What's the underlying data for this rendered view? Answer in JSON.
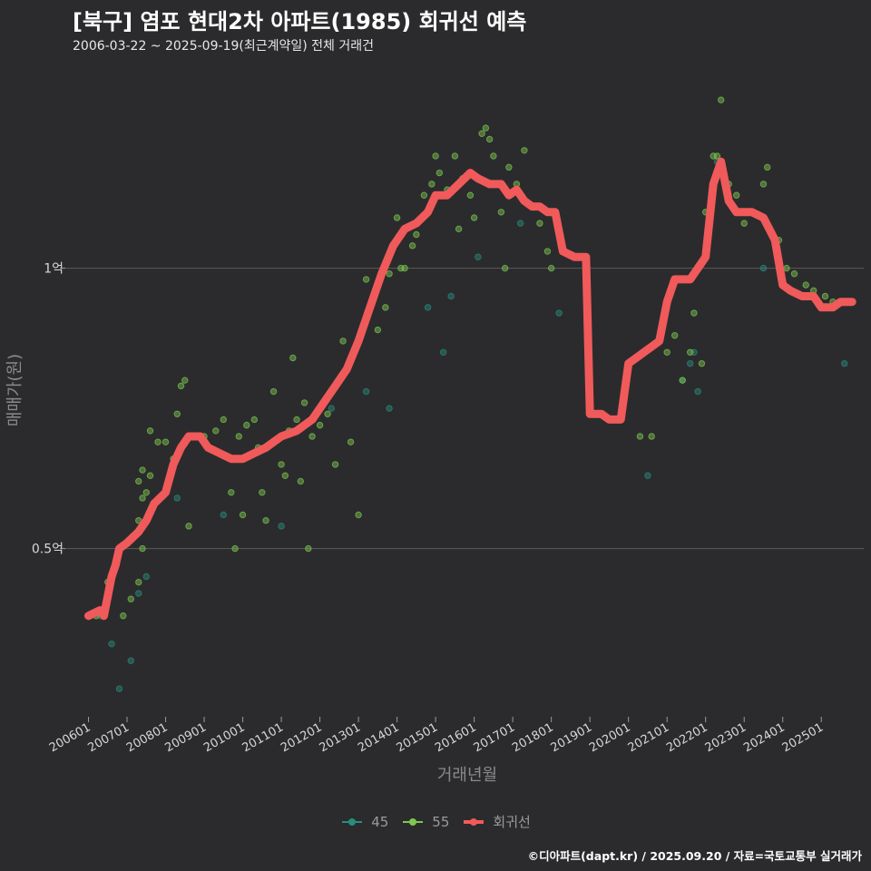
{
  "title": "[북구] 염포 현대2차 아파트(1985) 회귀선 예측",
  "subtitle": "2006-03-22 ~ 2025-09-19(최근계약일) 전체 거래건",
  "caption": "©디아파트(dapt.kr) / 2025.09.20 / 자료=국토교통부 실거래가",
  "colors": {
    "background": "#2b2b2d",
    "grid": "#5a5a5a",
    "s45": "#2a8c7c",
    "s55": "#7ec850",
    "trend": "#f05a5a"
  },
  "legend": [
    {
      "label": "45",
      "color": "#2a8c7c"
    },
    {
      "label": "55",
      "color": "#7ec850"
    },
    {
      "label": "회귀선",
      "color": "#f05a5a"
    }
  ],
  "chart_data": {
    "type": "scatter",
    "xlabel": "거래년월",
    "ylabel": "매매가(원)",
    "x_unit": "year (decimal)",
    "y_unit": "억",
    "xlim": [
      2005.4,
      2026.1
    ],
    "ylim": [
      0.2,
      1.365
    ],
    "xticks": [
      {
        "x": 2006.0,
        "label": "200601"
      },
      {
        "x": 2007.0,
        "label": "200701"
      },
      {
        "x": 2008.0,
        "label": "200801"
      },
      {
        "x": 2009.0,
        "label": "200901"
      },
      {
        "x": 2010.0,
        "label": "201001"
      },
      {
        "x": 2011.0,
        "label": "201101"
      },
      {
        "x": 2012.0,
        "label": "201201"
      },
      {
        "x": 2013.0,
        "label": "201301"
      },
      {
        "x": 2014.0,
        "label": "201401"
      },
      {
        "x": 2015.0,
        "label": "201501"
      },
      {
        "x": 2016.0,
        "label": "201601"
      },
      {
        "x": 2017.0,
        "label": "201701"
      },
      {
        "x": 2018.0,
        "label": "201801"
      },
      {
        "x": 2019.0,
        "label": "201901"
      },
      {
        "x": 2020.0,
        "label": "202001"
      },
      {
        "x": 2021.0,
        "label": "202101"
      },
      {
        "x": 2022.0,
        "label": "202201"
      },
      {
        "x": 2023.0,
        "label": "202301"
      },
      {
        "x": 2024.0,
        "label": "202401"
      },
      {
        "x": 2025.0,
        "label": "202501"
      }
    ],
    "yticks": [
      {
        "y": 0.5,
        "label": "0.5억"
      },
      {
        "y": 1.0,
        "label": "1억"
      }
    ],
    "series": [
      {
        "name": "45",
        "points": [
          [
            2006.3,
            0.38
          ],
          [
            2006.6,
            0.33
          ],
          [
            2006.8,
            0.25
          ],
          [
            2007.1,
            0.3
          ],
          [
            2007.3,
            0.42
          ],
          [
            2007.5,
            0.45
          ],
          [
            2008.3,
            0.59
          ],
          [
            2009.5,
            0.56
          ],
          [
            2011.0,
            0.54
          ],
          [
            2012.3,
            0.75
          ],
          [
            2013.2,
            0.78
          ],
          [
            2013.8,
            0.75
          ],
          [
            2014.8,
            0.93
          ],
          [
            2015.2,
            0.85
          ],
          [
            2015.4,
            0.95
          ],
          [
            2016.1,
            1.02
          ],
          [
            2017.2,
            1.08
          ],
          [
            2018.2,
            0.92
          ],
          [
            2020.5,
            0.63
          ],
          [
            2021.4,
            0.8
          ],
          [
            2021.6,
            0.83
          ],
          [
            2021.7,
            0.85
          ],
          [
            2021.8,
            0.78
          ],
          [
            2022.3,
            1.19
          ],
          [
            2023.5,
            1.0
          ],
          [
            2025.6,
            0.83
          ]
        ]
      },
      {
        "name": "55",
        "points": [
          [
            2006.2,
            0.38
          ],
          [
            2006.5,
            0.44
          ],
          [
            2006.9,
            0.38
          ],
          [
            2007.1,
            0.41
          ],
          [
            2007.3,
            0.44
          ],
          [
            2007.4,
            0.5
          ],
          [
            2007.3,
            0.55
          ],
          [
            2007.4,
            0.59
          ],
          [
            2007.3,
            0.62
          ],
          [
            2007.4,
            0.64
          ],
          [
            2007.5,
            0.6
          ],
          [
            2007.6,
            0.63
          ],
          [
            2007.6,
            0.71
          ],
          [
            2007.8,
            0.69
          ],
          [
            2008.0,
            0.69
          ],
          [
            2008.2,
            0.66
          ],
          [
            2008.3,
            0.74
          ],
          [
            2008.4,
            0.79
          ],
          [
            2008.5,
            0.8
          ],
          [
            2008.6,
            0.54
          ],
          [
            2008.8,
            0.7
          ],
          [
            2009.0,
            0.7
          ],
          [
            2009.3,
            0.71
          ],
          [
            2009.5,
            0.73
          ],
          [
            2009.7,
            0.6
          ],
          [
            2009.8,
            0.5
          ],
          [
            2009.9,
            0.7
          ],
          [
            2010.0,
            0.56
          ],
          [
            2010.1,
            0.72
          ],
          [
            2010.3,
            0.73
          ],
          [
            2010.4,
            0.68
          ],
          [
            2010.5,
            0.6
          ],
          [
            2010.6,
            0.55
          ],
          [
            2010.8,
            0.78
          ],
          [
            2011.0,
            0.65
          ],
          [
            2011.1,
            0.63
          ],
          [
            2011.2,
            0.71
          ],
          [
            2011.3,
            0.84
          ],
          [
            2011.4,
            0.73
          ],
          [
            2011.5,
            0.62
          ],
          [
            2011.6,
            0.76
          ],
          [
            2011.7,
            0.5
          ],
          [
            2011.8,
            0.7
          ],
          [
            2012.0,
            0.72
          ],
          [
            2012.2,
            0.74
          ],
          [
            2012.4,
            0.65
          ],
          [
            2012.6,
            0.87
          ],
          [
            2012.8,
            0.69
          ],
          [
            2013.0,
            0.56
          ],
          [
            2013.2,
            0.98
          ],
          [
            2013.4,
            0.95
          ],
          [
            2013.5,
            0.89
          ],
          [
            2013.7,
            0.93
          ],
          [
            2013.8,
            0.99
          ],
          [
            2014.0,
            1.09
          ],
          [
            2014.1,
            1.0
          ],
          [
            2014.2,
            1.0
          ],
          [
            2014.4,
            1.04
          ],
          [
            2014.5,
            1.06
          ],
          [
            2014.7,
            1.13
          ],
          [
            2014.9,
            1.15
          ],
          [
            2015.0,
            1.2
          ],
          [
            2015.1,
            1.17
          ],
          [
            2015.3,
            1.14
          ],
          [
            2015.5,
            1.2
          ],
          [
            2015.6,
            1.07
          ],
          [
            2015.7,
            1.16
          ],
          [
            2015.9,
            1.13
          ],
          [
            2016.0,
            1.09
          ],
          [
            2016.2,
            1.24
          ],
          [
            2016.3,
            1.25
          ],
          [
            2016.4,
            1.23
          ],
          [
            2016.5,
            1.2
          ],
          [
            2016.7,
            1.1
          ],
          [
            2016.8,
            1.0
          ],
          [
            2016.9,
            1.18
          ],
          [
            2017.1,
            1.15
          ],
          [
            2017.3,
            1.21
          ],
          [
            2017.5,
            1.11
          ],
          [
            2017.7,
            1.08
          ],
          [
            2017.9,
            1.03
          ],
          [
            2018.0,
            1.0
          ],
          [
            2020.3,
            0.7
          ],
          [
            2020.6,
            0.7
          ],
          [
            2021.0,
            0.85
          ],
          [
            2021.2,
            0.88
          ],
          [
            2021.4,
            0.8
          ],
          [
            2021.6,
            0.85
          ],
          [
            2021.7,
            0.92
          ],
          [
            2021.9,
            0.83
          ],
          [
            2022.0,
            1.1
          ],
          [
            2022.2,
            1.2
          ],
          [
            2022.3,
            1.2
          ],
          [
            2022.4,
            1.3
          ],
          [
            2022.6,
            1.15
          ],
          [
            2022.8,
            1.13
          ],
          [
            2023.0,
            1.08
          ],
          [
            2023.2,
            1.1
          ],
          [
            2023.5,
            1.15
          ],
          [
            2023.6,
            1.18
          ],
          [
            2023.9,
            1.05
          ],
          [
            2024.1,
            1.0
          ],
          [
            2024.3,
            0.99
          ],
          [
            2024.6,
            0.97
          ],
          [
            2024.8,
            0.96
          ],
          [
            2025.1,
            0.95
          ],
          [
            2025.3,
            0.94
          ]
        ]
      }
    ],
    "trend": {
      "name": "회귀선",
      "points": [
        [
          2006.0,
          0.38
        ],
        [
          2006.3,
          0.39
        ],
        [
          2006.4,
          0.38
        ],
        [
          2006.6,
          0.45
        ],
        [
          2006.7,
          0.47
        ],
        [
          2006.8,
          0.5
        ],
        [
          2007.0,
          0.51
        ],
        [
          2007.3,
          0.53
        ],
        [
          2007.5,
          0.55
        ],
        [
          2007.7,
          0.58
        ],
        [
          2008.0,
          0.6
        ],
        [
          2008.2,
          0.65
        ],
        [
          2008.4,
          0.68
        ],
        [
          2008.6,
          0.7
        ],
        [
          2008.9,
          0.7
        ],
        [
          2009.1,
          0.68
        ],
        [
          2009.4,
          0.67
        ],
        [
          2009.7,
          0.66
        ],
        [
          2010.0,
          0.66
        ],
        [
          2010.3,
          0.67
        ],
        [
          2010.6,
          0.68
        ],
        [
          2011.0,
          0.7
        ],
        [
          2011.4,
          0.71
        ],
        [
          2011.8,
          0.73
        ],
        [
          2012.1,
          0.76
        ],
        [
          2012.4,
          0.79
        ],
        [
          2012.7,
          0.82
        ],
        [
          2013.0,
          0.87
        ],
        [
          2013.3,
          0.93
        ],
        [
          2013.6,
          0.99
        ],
        [
          2013.9,
          1.04
        ],
        [
          2014.2,
          1.07
        ],
        [
          2014.5,
          1.08
        ],
        [
          2014.8,
          1.1
        ],
        [
          2015.0,
          1.13
        ],
        [
          2015.3,
          1.13
        ],
        [
          2015.6,
          1.15
        ],
        [
          2015.9,
          1.17
        ],
        [
          2016.1,
          1.16
        ],
        [
          2016.4,
          1.15
        ],
        [
          2016.7,
          1.15
        ],
        [
          2016.9,
          1.13
        ],
        [
          2017.1,
          1.14
        ],
        [
          2017.3,
          1.12
        ],
        [
          2017.5,
          1.11
        ],
        [
          2017.7,
          1.11
        ],
        [
          2017.9,
          1.1
        ],
        [
          2018.1,
          1.1
        ],
        [
          2018.3,
          1.03
        ],
        [
          2018.6,
          1.02
        ],
        [
          2018.9,
          1.02
        ],
        [
          2019.0,
          0.74
        ],
        [
          2019.3,
          0.74
        ],
        [
          2019.5,
          0.73
        ],
        [
          2019.8,
          0.73
        ],
        [
          2020.0,
          0.83
        ],
        [
          2020.2,
          0.84
        ],
        [
          2020.4,
          0.85
        ],
        [
          2020.6,
          0.86
        ],
        [
          2020.8,
          0.87
        ],
        [
          2021.0,
          0.94
        ],
        [
          2021.2,
          0.98
        ],
        [
          2021.4,
          0.98
        ],
        [
          2021.6,
          0.98
        ],
        [
          2021.8,
          1.0
        ],
        [
          2022.0,
          1.02
        ],
        [
          2022.2,
          1.15
        ],
        [
          2022.4,
          1.19
        ],
        [
          2022.6,
          1.12
        ],
        [
          2022.8,
          1.1
        ],
        [
          2023.0,
          1.1
        ],
        [
          2023.2,
          1.1
        ],
        [
          2023.5,
          1.09
        ],
        [
          2023.8,
          1.05
        ],
        [
          2024.0,
          0.97
        ],
        [
          2024.2,
          0.96
        ],
        [
          2024.5,
          0.95
        ],
        [
          2024.8,
          0.95
        ],
        [
          2025.0,
          0.93
        ],
        [
          2025.3,
          0.93
        ],
        [
          2025.5,
          0.94
        ],
        [
          2025.8,
          0.94
        ]
      ]
    }
  }
}
